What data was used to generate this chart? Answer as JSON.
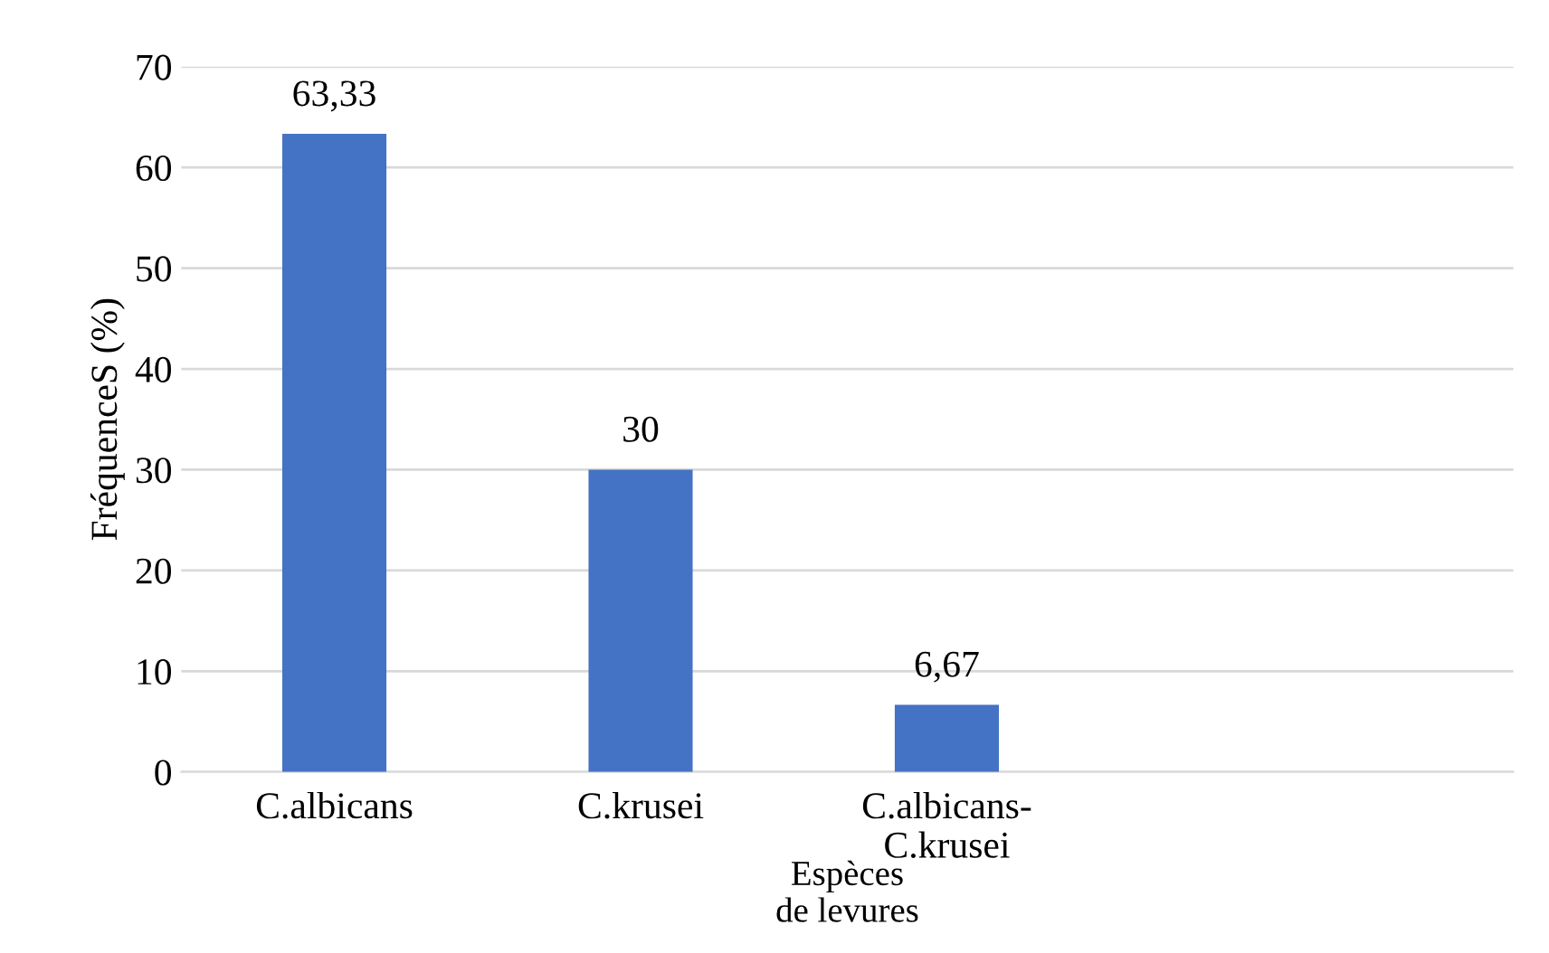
{
  "chart_data": {
    "type": "bar",
    "ylabel": "FréquenceS (%)",
    "xlabel": "Espèces\nde levures",
    "categories": [
      "C.albicans",
      "C.krusei",
      "C.albicans-\nC.krusei",
      null
    ],
    "values": [
      63.33,
      30,
      6.67,
      null
    ],
    "value_labels": [
      "63,33",
      "30",
      "6,67",
      null
    ],
    "color": "#4472c4",
    "ylim": [
      0,
      70
    ],
    "yticks": [
      0,
      10,
      20,
      30,
      40,
      50,
      60,
      70
    ],
    "grid": "y",
    "legend": false
  }
}
